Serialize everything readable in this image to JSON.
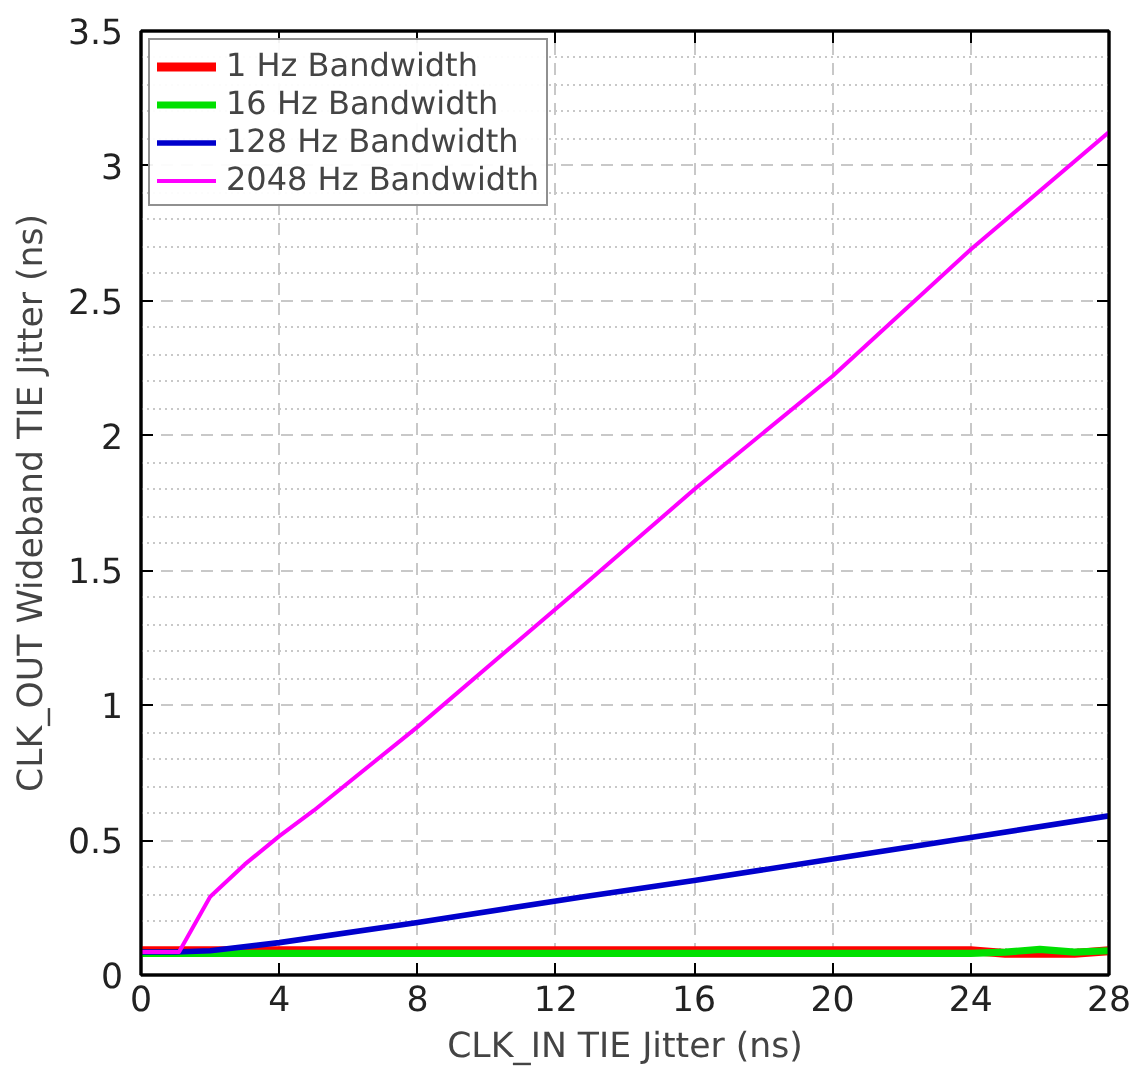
{
  "chart_data": {
    "type": "line",
    "xlabel": "CLK_IN TIE Jitter (ns)",
    "ylabel": "CLK_OUT Wideband TIE Jitter (ns)",
    "xlim": [
      0,
      28
    ],
    "ylim": [
      0,
      3.5
    ],
    "xticks": [
      0,
      4,
      8,
      12,
      16,
      20,
      24,
      28
    ],
    "yticks": [
      0,
      0.5,
      1,
      1.5,
      2,
      2.5,
      3,
      3.5
    ],
    "grid": true,
    "legend": "top left",
    "line_style": "solid",
    "marker": "none",
    "series": [
      {
        "name": "1 Hz Bandwidth",
        "color": "#ff0000",
        "x": [
          0,
          4,
          8,
          12,
          16,
          20,
          24,
          25,
          26,
          27,
          28
        ],
        "values": [
          0.09,
          0.09,
          0.09,
          0.09,
          0.09,
          0.09,
          0.09,
          0.08,
          0.08,
          0.08,
          0.09
        ]
      },
      {
        "name": "16 Hz Bandwidth",
        "color": "#00e000",
        "x": [
          0,
          4,
          8,
          12,
          16,
          20,
          24,
          25,
          26,
          27,
          28
        ],
        "values": [
          0.08,
          0.08,
          0.08,
          0.08,
          0.08,
          0.08,
          0.08,
          0.085,
          0.095,
          0.085,
          0.09
        ]
      },
      {
        "name": "128 Hz Bandwidth",
        "color": "#0000cc",
        "x": [
          0,
          1,
          2,
          4,
          8,
          12.8,
          16,
          20,
          24,
          28
        ],
        "values": [
          0.085,
          0.085,
          0.09,
          0.12,
          0.195,
          0.29,
          0.35,
          0.43,
          0.51,
          0.59
        ]
      },
      {
        "name": "2048 Hz Bandwidth",
        "color": "#ff00ff",
        "x": [
          0,
          1.1,
          2,
          3,
          4,
          5,
          8,
          12.8,
          16,
          20,
          24,
          28
        ],
        "values": [
          0.085,
          0.085,
          0.29,
          0.41,
          0.515,
          0.61,
          0.92,
          1.445,
          1.8,
          2.22,
          2.69,
          3.125
        ]
      }
    ]
  }
}
